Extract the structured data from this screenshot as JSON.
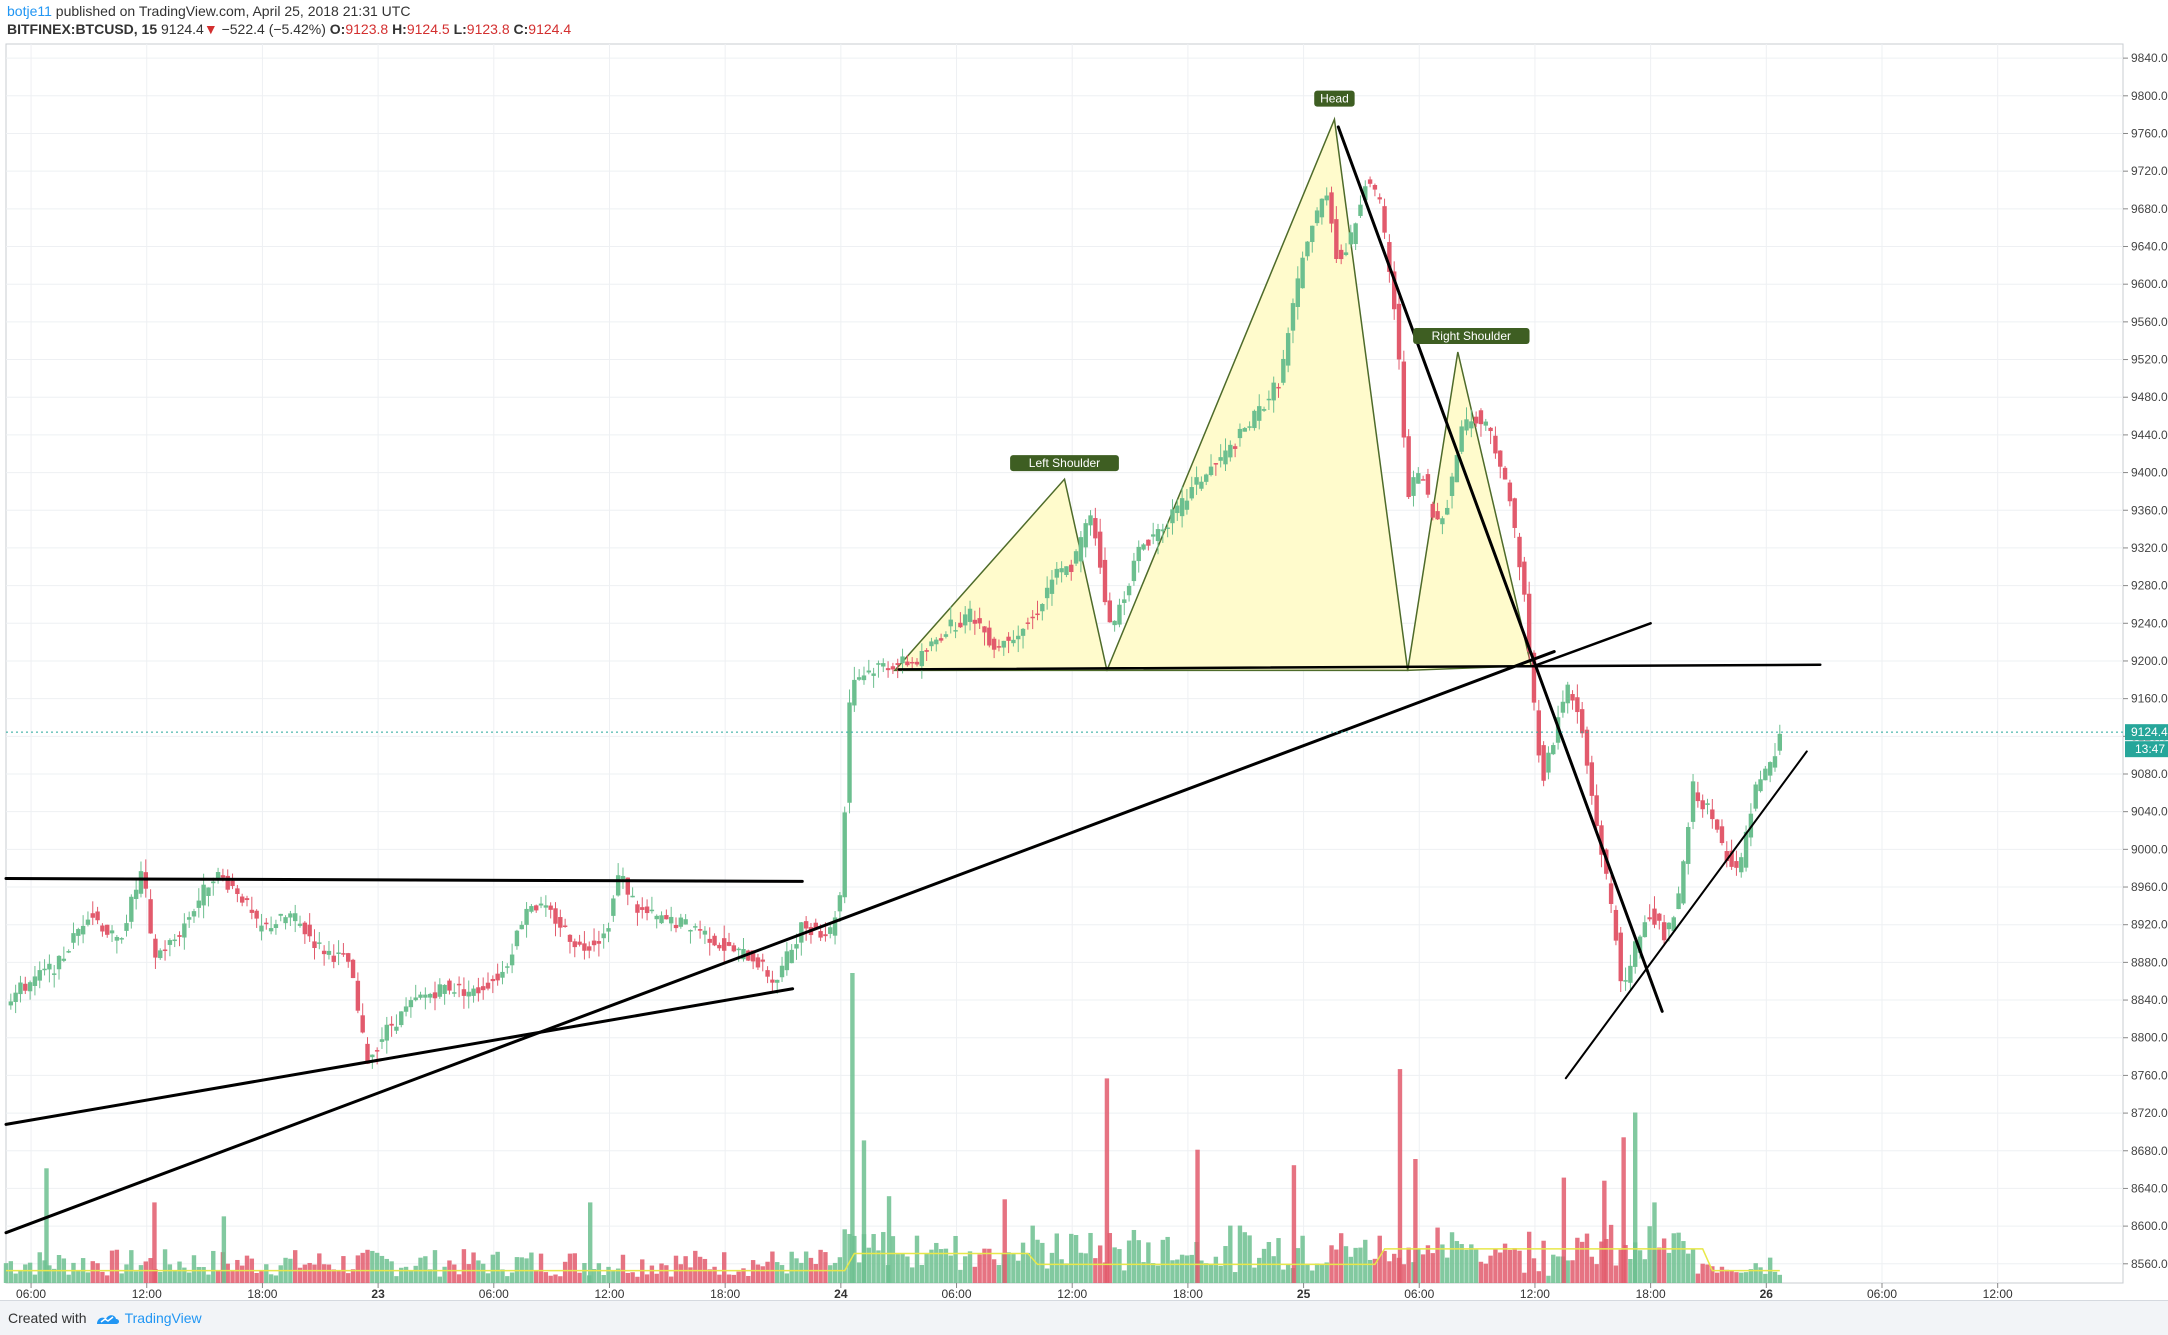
{
  "header": {
    "author": "botje11",
    "published_text": "published on TradingView.com, April 25, 2018 21:31 UTC",
    "symbol": "BITFINEX:BTCUSD, 15",
    "last": "9124.4",
    "change_arrow": "▼",
    "change": "−522.4 (−5.42%)",
    "open_label": "O:",
    "open": "9123.8",
    "high_label": "H:",
    "high": "9124.5",
    "low_label": "L:",
    "low": "9123.8",
    "close_label": "C:",
    "close": "9124.4"
  },
  "footer": {
    "created_with": "Created with",
    "brand": "TradingView"
  },
  "colors": {
    "up": "#6cbf8f",
    "down": "#e25a6c",
    "pattern_fill": "#fffbcc",
    "pattern_stroke": "#4e6b2a",
    "label_bg": "#3e5e22",
    "price_tag": "#26a69a",
    "trendline": "#000000",
    "volume_ma": "#e8e84a"
  },
  "chart_data": {
    "type": "candlestick",
    "symbol": "BITFINEX:BTCUSD",
    "interval": "15",
    "ylim": [
      8555,
      9855
    ],
    "y_ticks": [
      8560,
      8600,
      8640,
      8680,
      8720,
      8760,
      8800,
      8840,
      8880,
      8920,
      8960,
      9000,
      9040,
      9080,
      9120,
      9160,
      9200,
      9240,
      9280,
      9320,
      9360,
      9400,
      9440,
      9480,
      9520,
      9560,
      9600,
      9640,
      9680,
      9720,
      9760,
      9800,
      9840
    ],
    "y_tick_labels": [
      "8560.0",
      "8600.0",
      "8640.0",
      "8680.0",
      "8720.0",
      "8760.0",
      "8800.0",
      "8840.0",
      "8880.0",
      "8920.0",
      "8960.0",
      "9000.0",
      "9040.0",
      "9080.0",
      "9120.0",
      "9160.0",
      "9200.0",
      "9240.0",
      "9280.0",
      "9320.0",
      "9360.0",
      "9400.0",
      "9440.0",
      "9480.0",
      "9520.0",
      "9560.0",
      "9600.0",
      "9640.0",
      "9680.0",
      "9720.0",
      "9760.0",
      "9800.0",
      "9840.0"
    ],
    "xlim_hours": [
      4.7,
      114.5
    ],
    "x_ticks": [
      {
        "t": 6,
        "label": "06:00",
        "bold": false
      },
      {
        "t": 12,
        "label": "12:00",
        "bold": false
      },
      {
        "t": 18,
        "label": "18:00",
        "bold": false
      },
      {
        "t": 24,
        "label": "23",
        "bold": true
      },
      {
        "t": 30,
        "label": "06:00",
        "bold": false
      },
      {
        "t": 36,
        "label": "12:00",
        "bold": false
      },
      {
        "t": 42,
        "label": "18:00",
        "bold": false
      },
      {
        "t": 48,
        "label": "24",
        "bold": true
      },
      {
        "t": 54,
        "label": "06:00",
        "bold": false
      },
      {
        "t": 60,
        "label": "12:00",
        "bold": false
      },
      {
        "t": 66,
        "label": "18:00",
        "bold": false
      },
      {
        "t": 72,
        "label": "25",
        "bold": true
      },
      {
        "t": 78,
        "label": "06:00",
        "bold": false
      },
      {
        "t": 84,
        "label": "12:00",
        "bold": false
      },
      {
        "t": 90,
        "label": "18:00",
        "bold": false
      },
      {
        "t": 96,
        "label": "26",
        "bold": true
      },
      {
        "t": 102,
        "label": "06:00",
        "bold": false
      },
      {
        "t": 108,
        "label": "12:00",
        "bold": false
      }
    ],
    "price_path": [
      [
        4.7,
        8840
      ],
      [
        6.0,
        8860
      ],
      [
        7.5,
        8880
      ],
      [
        9.0,
        8935
      ],
      [
        10.5,
        8900
      ],
      [
        11.8,
        8980
      ],
      [
        12.3,
        8885
      ],
      [
        13.5,
        8905
      ],
      [
        15.5,
        8975
      ],
      [
        16.8,
        8955
      ],
      [
        17.8,
        8915
      ],
      [
        19.5,
        8930
      ],
      [
        21.0,
        8895
      ],
      [
        22.5,
        8880
      ],
      [
        23.4,
        8775
      ],
      [
        24.5,
        8810
      ],
      [
        26.0,
        8840
      ],
      [
        27.5,
        8855
      ],
      [
        29.0,
        8848
      ],
      [
        30.5,
        8870
      ],
      [
        31.8,
        8945
      ],
      [
        33.0,
        8930
      ],
      [
        34.5,
        8895
      ],
      [
        35.8,
        8910
      ],
      [
        36.5,
        8975
      ],
      [
        37.5,
        8935
      ],
      [
        38.7,
        8925
      ],
      [
        40.5,
        8918
      ],
      [
        42.0,
        8895
      ],
      [
        43.5,
        8885
      ],
      [
        44.6,
        8858
      ],
      [
        46.0,
        8920
      ],
      [
        47.4,
        8910
      ],
      [
        48.0,
        8955
      ],
      [
        48.5,
        9180
      ],
      [
        50.0,
        9195
      ],
      [
        52.0,
        9200
      ],
      [
        53.5,
        9235
      ],
      [
        54.8,
        9250
      ],
      [
        56.0,
        9215
      ],
      [
        58.0,
        9245
      ],
      [
        59.0,
        9290
      ],
      [
        60.0,
        9300
      ],
      [
        61.0,
        9360
      ],
      [
        62.0,
        9230
      ],
      [
        63.5,
        9320
      ],
      [
        65.5,
        9360
      ],
      [
        66.5,
        9390
      ],
      [
        68.0,
        9420
      ],
      [
        69.5,
        9460
      ],
      [
        70.8,
        9500
      ],
      [
        71.5,
        9580
      ],
      [
        72.2,
        9650
      ],
      [
        73.2,
        9700
      ],
      [
        73.8,
        9620
      ],
      [
        74.5,
        9650
      ],
      [
        75.3,
        9720
      ],
      [
        76.0,
        9680
      ],
      [
        76.8,
        9560
      ],
      [
        77.4,
        9380
      ],
      [
        78.1,
        9400
      ],
      [
        78.8,
        9345
      ],
      [
        79.5,
        9370
      ],
      [
        80.2,
        9450
      ],
      [
        81.0,
        9460
      ],
      [
        81.8,
        9440
      ],
      [
        82.8,
        9360
      ],
      [
        83.5,
        9260
      ],
      [
        84.0,
        9140
      ],
      [
        84.4,
        9075
      ],
      [
        85.0,
        9120
      ],
      [
        85.6,
        9175
      ],
      [
        86.3,
        9140
      ],
      [
        87.0,
        9050
      ],
      [
        88.0,
        8935
      ],
      [
        88.6,
        8845
      ],
      [
        89.3,
        8905
      ],
      [
        90.0,
        8935
      ],
      [
        90.8,
        8905
      ],
      [
        91.5,
        8950
      ],
      [
        92.2,
        9065
      ],
      [
        93.0,
        9040
      ],
      [
        93.8,
        9000
      ],
      [
        94.6,
        8975
      ],
      [
        95.4,
        9060
      ],
      [
        96.3,
        9090
      ],
      [
        96.8,
        9125
      ]
    ],
    "current_price": 9124.4,
    "current_price_label": "9124.4",
    "countdown_label": "13:47",
    "volume_max": 1000,
    "volume_spikes": [
      {
        "t": 6.8,
        "v": 370,
        "up": true
      },
      {
        "t": 12.4,
        "v": 260,
        "up": false
      },
      {
        "t": 16.0,
        "v": 215,
        "up": true
      },
      {
        "t": 35.0,
        "v": 260,
        "up": true
      },
      {
        "t": 48.6,
        "v": 1000,
        "up": true
      },
      {
        "t": 49.2,
        "v": 460,
        "up": true
      },
      {
        "t": 50.5,
        "v": 280,
        "up": true
      },
      {
        "t": 56.5,
        "v": 270,
        "up": false
      },
      {
        "t": 61.8,
        "v": 660,
        "up": false
      },
      {
        "t": 66.5,
        "v": 430,
        "up": false
      },
      {
        "t": 71.5,
        "v": 380,
        "up": false
      },
      {
        "t": 77.0,
        "v": 690,
        "up": false
      },
      {
        "t": 77.8,
        "v": 400,
        "up": false
      },
      {
        "t": 85.5,
        "v": 340,
        "up": false
      },
      {
        "t": 87.6,
        "v": 330,
        "up": false
      },
      {
        "t": 88.6,
        "v": 470,
        "up": false
      },
      {
        "t": 89.2,
        "v": 550,
        "up": true
      },
      {
        "t": 90.2,
        "v": 260,
        "up": true
      }
    ],
    "pattern": {
      "neckline": 9190,
      "left_shoulder": {
        "label": "Left Shoulder",
        "start": [
          50.8,
          9190
        ],
        "peak": [
          59.6,
          9393
        ],
        "end": [
          61.8,
          9190
        ]
      },
      "head": {
        "label": "Head",
        "peak": [
          73.6,
          9775
        ],
        "end": [
          77.4,
          9190
        ]
      },
      "right_shoulder": {
        "label": "Right Shoulder",
        "peak": [
          80.0,
          9528
        ],
        "end": [
          83.8,
          9195
        ]
      }
    },
    "trendlines": [
      {
        "from": [
          4.7,
          8969
        ],
        "to": [
          46.0,
          8966
        ],
        "width": 3
      },
      {
        "from": [
          4.7,
          8708
        ],
        "to": [
          45.5,
          8852
        ],
        "width": 3
      },
      {
        "from": [
          4.7,
          8593
        ],
        "to": [
          85.0,
          9210
        ],
        "width": 3
      },
      {
        "from": [
          51.0,
          9191
        ],
        "to": [
          98.8,
          9196
        ],
        "width": 2.5
      },
      {
        "from": [
          84.0,
          9195
        ],
        "to": [
          90.0,
          9240
        ],
        "width": 2.5
      },
      {
        "from": [
          73.8,
          9767
        ],
        "to": [
          90.6,
          8828
        ],
        "width": 3
      },
      {
        "from": [
          85.6,
          8757
        ],
        "to": [
          98.1,
          9104
        ],
        "width": 2
      }
    ]
  }
}
